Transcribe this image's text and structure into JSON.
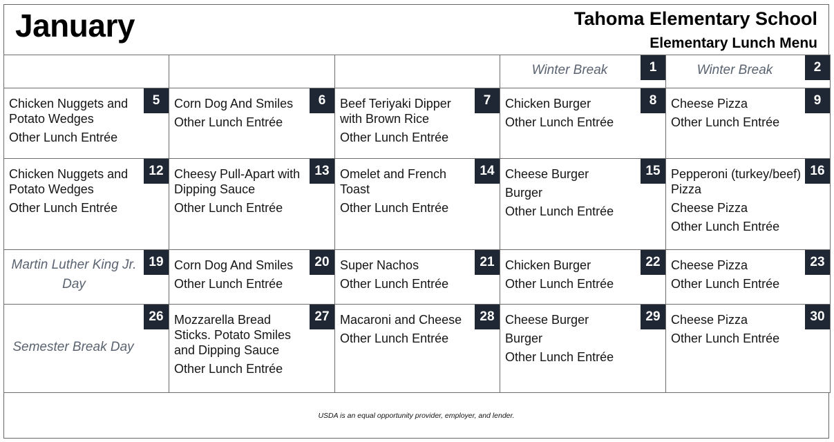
{
  "header": {
    "month": "January",
    "school": "Tahoma Elementary School",
    "menu_title": "Elementary Lunch Menu"
  },
  "colors": {
    "day_badge": "#1e2733",
    "note_text": "#5a6370",
    "border": "#6b6b6b"
  },
  "weeks": [
    [
      {
        "day": "",
        "items": []
      },
      {
        "day": "",
        "items": []
      },
      {
        "day": "",
        "items": []
      },
      {
        "day": "1",
        "note": "Winter Break",
        "items": []
      },
      {
        "day": "2",
        "note": "Winter Break",
        "items": []
      }
    ],
    [
      {
        "day": "5",
        "items": [
          "Chicken Nuggets and Potato Wedges",
          "Other Lunch Entrée"
        ]
      },
      {
        "day": "6",
        "items": [
          "Corn Dog And Smiles",
          "Other Lunch Entrée"
        ]
      },
      {
        "day": "7",
        "items": [
          "Beef Teriyaki Dipper with Brown Rice",
          "Other Lunch Entrée"
        ]
      },
      {
        "day": "8",
        "items": [
          "Chicken Burger",
          "Other Lunch Entrée"
        ]
      },
      {
        "day": "9",
        "items": [
          "Cheese Pizza",
          "Other Lunch Entrée"
        ]
      }
    ],
    [
      {
        "day": "12",
        "items": [
          "Chicken Nuggets and Potato Wedges",
          "Other Lunch Entrée"
        ]
      },
      {
        "day": "13",
        "items": [
          "Cheesy Pull-Apart with Dipping Sauce",
          "Other Lunch Entrée"
        ]
      },
      {
        "day": "14",
        "items": [
          "Omelet and French Toast",
          "Other Lunch Entrée"
        ]
      },
      {
        "day": "15",
        "items": [
          "Cheese Burger",
          "Burger",
          "Other Lunch Entrée"
        ]
      },
      {
        "day": "16",
        "items": [
          "Pepperoni (turkey/beef) Pizza",
          "Cheese Pizza",
          "Other Lunch Entrée"
        ]
      }
    ],
    [
      {
        "day": "19",
        "note": "Martin Luther King Jr. Day",
        "items": []
      },
      {
        "day": "20",
        "items": [
          "Corn Dog And Smiles",
          "Other Lunch Entrée"
        ]
      },
      {
        "day": "21",
        "items": [
          "Super Nachos",
          "Other Lunch Entrée"
        ]
      },
      {
        "day": "22",
        "items": [
          "Chicken Burger",
          "Other Lunch Entrée"
        ]
      },
      {
        "day": "23",
        "items": [
          "Cheese Pizza",
          "Other Lunch Entrée"
        ]
      }
    ],
    [
      {
        "day": "26",
        "note": "Semester Break Day",
        "items": []
      },
      {
        "day": "27",
        "items": [
          "Mozzarella Bread Sticks. Potato Smiles and Dipping Sauce",
          "Other Lunch Entrée"
        ]
      },
      {
        "day": "28",
        "items": [
          "Macaroni and Cheese",
          "Other Lunch Entrée"
        ]
      },
      {
        "day": "29",
        "items": [
          "Cheese Burger",
          "Burger",
          "Other Lunch Entrée"
        ]
      },
      {
        "day": "30",
        "items": [
          "Cheese Pizza",
          "Other Lunch Entrée"
        ]
      }
    ]
  ],
  "footer": "USDA is an equal opportunity provider, employer, and lender."
}
